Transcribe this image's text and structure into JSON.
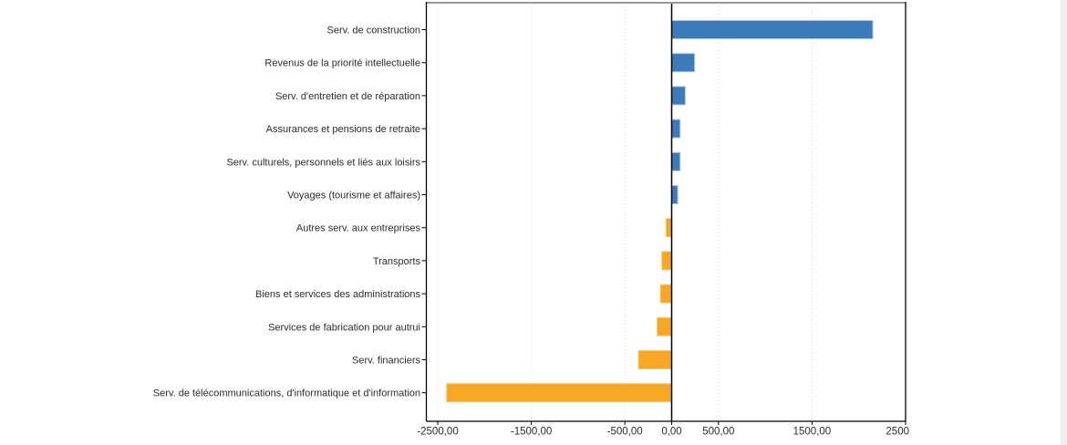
{
  "page": {
    "background": "#ffffff",
    "right_gutter_color": "#f0f0f0"
  },
  "chart_data": {
    "type": "bar",
    "orientation": "horizontal",
    "title": "",
    "xlabel": "",
    "ylabel": "",
    "legend": "none",
    "grid": "vertical dotted",
    "categories": [
      "Serv. de construction",
      "Revenus de la priorité intellectuelle",
      "Serv. d'entretien et de réparation",
      "Assurances et pensions de retraite",
      "Serv. culturels, personnels et liés aux loisirs",
      "Voyages (tourisme et affaires)",
      "Autres serv. aux entreprises",
      "Transports",
      "Biens et services des administrations",
      "Services de fabrication pour autrui",
      "Serv. financiers",
      "Serv. de télécommunications, d'informatique et d'information"
    ],
    "values": [
      2150,
      245,
      145,
      90,
      90,
      65,
      -60,
      -105,
      -120,
      -155,
      -355,
      -2405
    ],
    "xlim": [
      -2622,
      2500
    ],
    "xticks": {
      "values": [
        -2500,
        -1500,
        -500,
        0,
        500,
        1500,
        2500
      ],
      "labels": [
        "-2500,00",
        "-1500,00",
        "-500,00",
        "0,00",
        "500,00",
        "1500,00",
        "2500"
      ]
    },
    "colors": {
      "positive": "#3d7cba",
      "positive_edge": "#aac6e2",
      "negative": "#f6a723",
      "negative_edge": "#f8c977",
      "zero_line": "#000000",
      "axis": "#000000",
      "top_border": "#999999",
      "grid": "#dcdcdc",
      "text": "#2b2b2b"
    }
  }
}
